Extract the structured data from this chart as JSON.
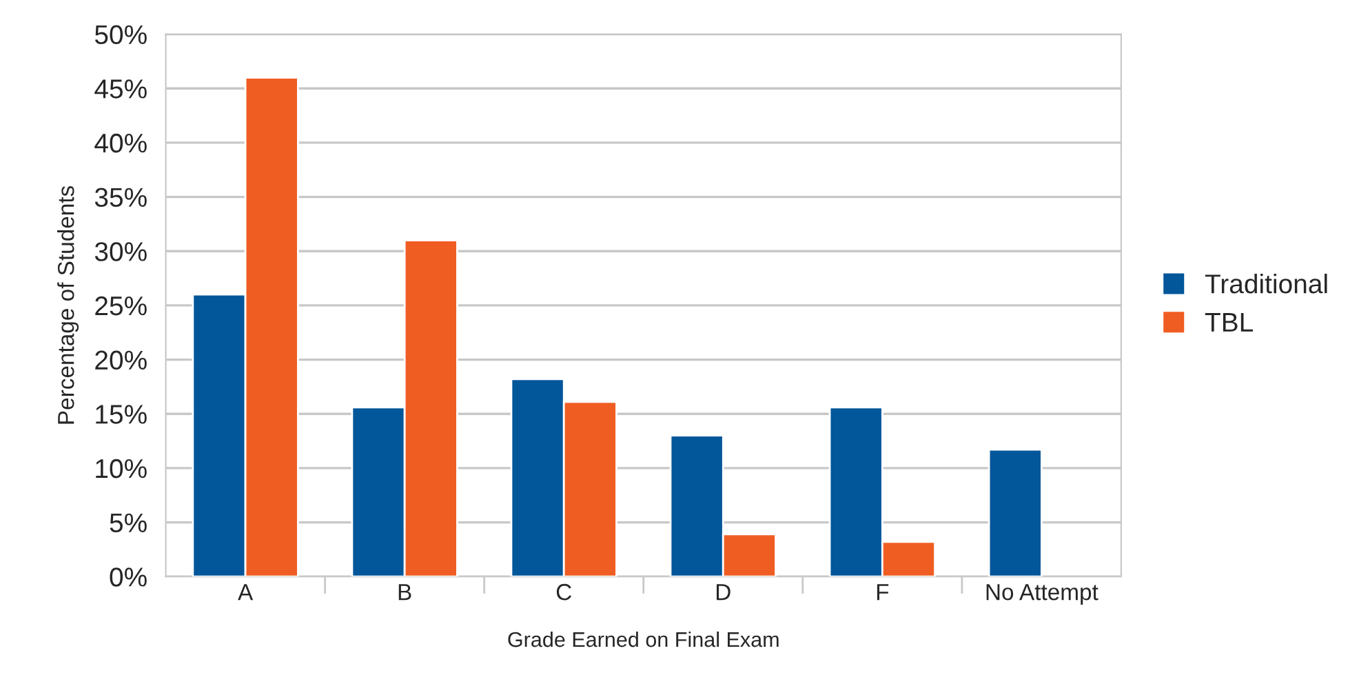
{
  "chart_data": {
    "type": "bar",
    "xlabel": "Grade Earned on Final Exam",
    "ylabel": "Percentage of Students",
    "categories": [
      "A",
      "B",
      "C",
      "D",
      "F",
      "No Attempt"
    ],
    "series": [
      {
        "name": "Traditional",
        "color": "#02569a",
        "values": [
          26,
          15.6,
          18.2,
          13,
          15.6,
          11.7
        ]
      },
      {
        "name": "TBL",
        "color": "#f05d23",
        "values": [
          46,
          31,
          16.1,
          3.9,
          3.2,
          null
        ]
      }
    ],
    "ylim": [
      0,
      50
    ],
    "yticks": [
      {
        "value": 0,
        "label": "0%"
      },
      {
        "value": 5,
        "label": "5%"
      },
      {
        "value": 10,
        "label": "10%"
      },
      {
        "value": 15,
        "label": "15%"
      },
      {
        "value": 20,
        "label": "20%"
      },
      {
        "value": 25,
        "label": "25%"
      },
      {
        "value": 30,
        "label": "30%"
      },
      {
        "value": 35,
        "label": "35%"
      },
      {
        "value": 40,
        "label": "40%"
      },
      {
        "value": 45,
        "label": "45%"
      },
      {
        "value": 50,
        "label": "50%"
      }
    ],
    "grid": "y",
    "legend": "right"
  }
}
